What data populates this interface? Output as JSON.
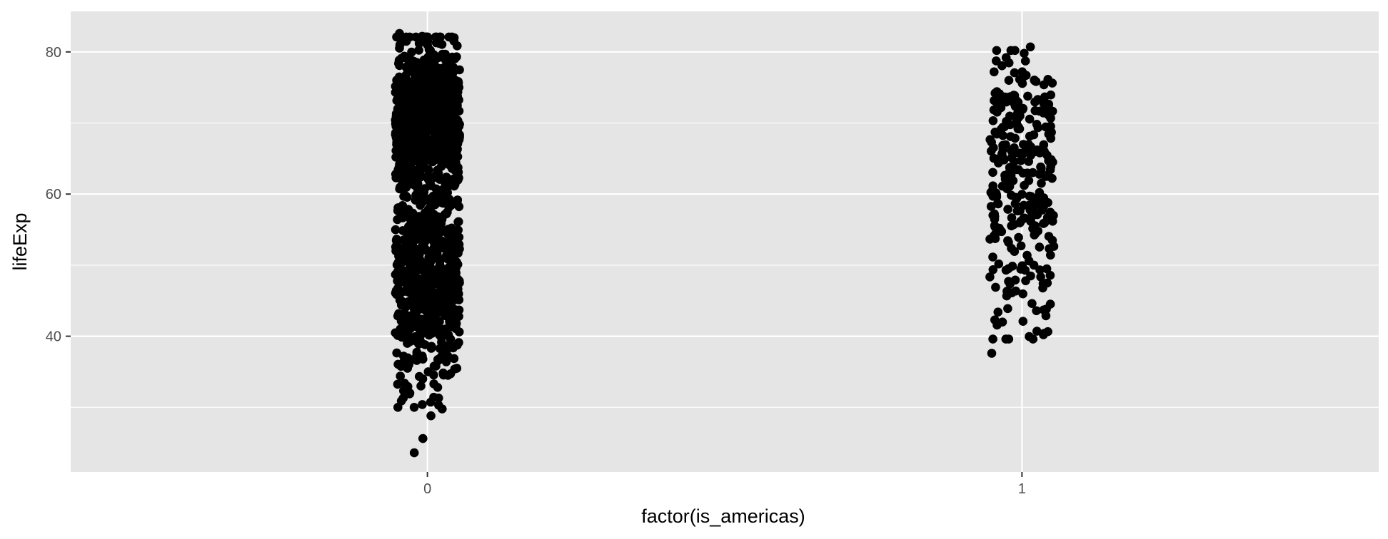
{
  "chart_data": {
    "type": "scatter",
    "title": "",
    "xlabel": "factor(is_americas)",
    "ylabel": "lifeExp",
    "categories": [
      "0",
      "1"
    ],
    "ylim": [
      20.9,
      85.7
    ],
    "y_ticks": [
      40,
      60,
      80
    ],
    "y_tick_labels": [
      "40",
      "60",
      "80"
    ],
    "x_tick_labels": [
      "0",
      "1"
    ],
    "grid": true,
    "legend": "none",
    "jitter_width": 0.4,
    "point_color": "#000000",
    "panel_color": "#e5e5e5",
    "grid_color": "#ffffff",
    "series": [
      {
        "category": "0",
        "count": 1404,
        "y_range": [
          23.6,
          82.6
        ],
        "highlights": [
          23.6,
          28.8,
          30.0,
          30.0,
          30.3,
          31.3,
          32.0,
          32.2,
          33.0,
          33.3,
          34.0,
          34.5,
          35.0,
          81.0,
          81.5,
          81.7,
          82.0,
          82.2,
          82.6
        ]
      },
      {
        "category": "1",
        "count": 300,
        "y_range": [
          37.6,
          80.7
        ],
        "highlights": [
          37.6,
          40.4,
          40.7,
          42.0,
          42.1,
          42.3,
          43.4,
          43.7,
          44.6,
          79.2,
          79.8,
          80.7
        ]
      }
    ]
  }
}
